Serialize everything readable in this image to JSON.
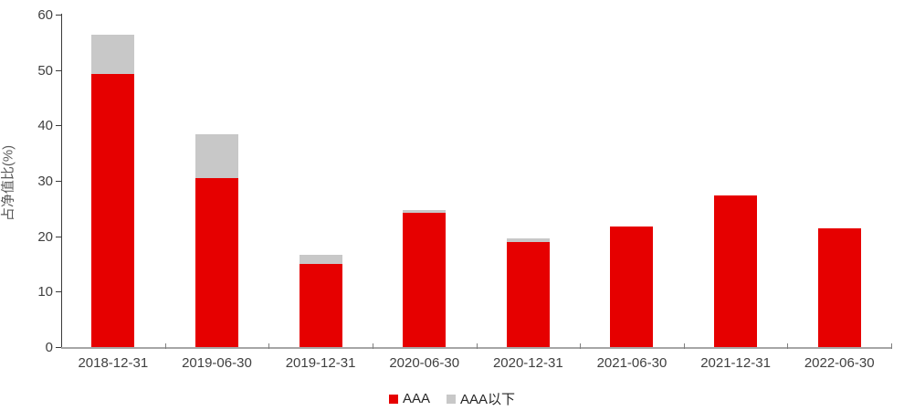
{
  "chart_data": {
    "type": "bar",
    "stacked": true,
    "title": "",
    "categories": [
      "2018-12-31",
      "2019-06-30",
      "2019-12-31",
      "2020-06-30",
      "2020-12-31",
      "2021-06-30",
      "2021-12-31",
      "2022-06-30"
    ],
    "series": [
      {
        "name": "AAA",
        "color": "#e60000",
        "values": [
          49.3,
          30.5,
          15.0,
          24.2,
          18.9,
          21.7,
          27.4,
          21.5
        ]
      },
      {
        "name": "AAA以下",
        "color": "#c8c8c8",
        "values": [
          7.0,
          7.9,
          1.6,
          0.6,
          0.7,
          0,
          0,
          0
        ]
      }
    ],
    "xlabel": "",
    "ylabel": "占净值比(%)",
    "ylim": [
      0,
      60
    ],
    "ytick_step": 10,
    "yticks": [
      0,
      10,
      20,
      30,
      40,
      50,
      60
    ],
    "grid": false,
    "legend_position": "bottom"
  },
  "colors": {
    "series_aaa": "#e60000",
    "series_below_aaa": "#c8c8c8",
    "x_axis_line": "#a6a6a6",
    "y_axis_line": "#3a3a3a",
    "tick_label_text": "#404040",
    "y_title_text": "#595959",
    "legend_text": "#262626",
    "background": "#ffffff"
  }
}
